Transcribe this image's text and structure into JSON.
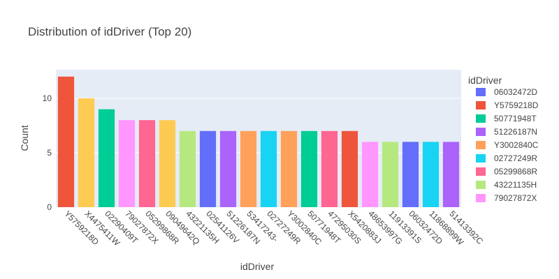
{
  "chart_data": {
    "type": "bar",
    "title": "Distribution of idDriver (Top 20)",
    "xlabel": "idDriver",
    "ylabel": "Count",
    "ylim": [
      0,
      12.63
    ],
    "yticks": [
      0,
      5,
      10
    ],
    "grid": true,
    "legend_position": "right",
    "legend_title": "idDriver",
    "bars": [
      {
        "category": "Y5759218D",
        "value": 12,
        "color": "#EF553B"
      },
      {
        "category": "X4475411W",
        "value": 10,
        "color": "#FECB52"
      },
      {
        "category": "02290409T",
        "value": 9,
        "color": "#00CC96"
      },
      {
        "category": "79027872X",
        "value": 8,
        "color": "#FF97FF"
      },
      {
        "category": "05299868R",
        "value": 8,
        "color": "#FF6692"
      },
      {
        "category": "09049642Q",
        "value": 8,
        "color": "#FECB52"
      },
      {
        "category": "43221135H",
        "value": 7,
        "color": "#B6E880"
      },
      {
        "category": "02541126V",
        "value": 7,
        "color": "#636EFA"
      },
      {
        "category": "51226187N",
        "value": 7,
        "color": "#AB63FA"
      },
      {
        "category": "53417243-",
        "value": 7,
        "color": "#FFA15A"
      },
      {
        "category": "02727249R",
        "value": 7,
        "color": "#19D3F3"
      },
      {
        "category": "Y3002840C",
        "value": 7,
        "color": "#FFA15A"
      },
      {
        "category": "50771948T",
        "value": 7,
        "color": "#00CC96"
      },
      {
        "category": "47295030S",
        "value": 7,
        "color": "#FF6692"
      },
      {
        "category": "X5420883J",
        "value": 7,
        "color": "#EF553B"
      },
      {
        "category": "48653997G",
        "value": 6,
        "color": "#FF97FF"
      },
      {
        "category": "11913391S",
        "value": 6,
        "color": "#B6E880"
      },
      {
        "category": "06032472D",
        "value": 6,
        "color": "#636EFA"
      },
      {
        "category": "11868899W",
        "value": 6,
        "color": "#19D3F3"
      },
      {
        "category": "51413392C",
        "value": 6,
        "color": "#AB63FA"
      }
    ],
    "legend": [
      {
        "label": "06032472D",
        "color": "#636EFA"
      },
      {
        "label": "Y5759218D",
        "color": "#EF553B"
      },
      {
        "label": "50771948T",
        "color": "#00CC96"
      },
      {
        "label": "51226187N",
        "color": "#AB63FA"
      },
      {
        "label": "Y3002840C",
        "color": "#FFA15A"
      },
      {
        "label": "02727249R",
        "color": "#19D3F3"
      },
      {
        "label": "05299868R",
        "color": "#FF6692"
      },
      {
        "label": "43221135H",
        "color": "#B6E880"
      },
      {
        "label": "79027872X",
        "color": "#FF97FF"
      }
    ],
    "plot_bg": "#E5ECF6"
  }
}
